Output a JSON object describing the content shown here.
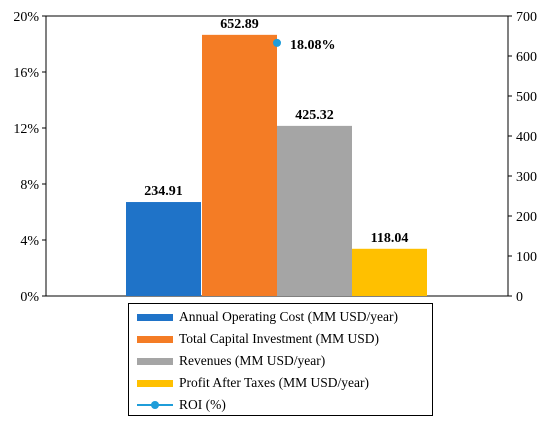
{
  "chart_data": {
    "type": "bar",
    "categories": [
      "Annual Operating Cost (MM USD/year)",
      "Total Capital Investment (MM USD)",
      "Revenues (MM USD/year)",
      "Profit After Taxes (MM USD/year)"
    ],
    "series": [
      {
        "name": "Annual Operating Cost (MM USD/year)",
        "value": 234.91,
        "label": "234.91",
        "color": "#1f73c8"
      },
      {
        "name": "Total Capital Investment (MM USD)",
        "value": 652.89,
        "label": "652.89",
        "color": "#f47c25"
      },
      {
        "name": "Revenues (MM USD/year)",
        "value": 425.32,
        "label": "425.32",
        "color": "#a5a5a5"
      },
      {
        "name": "Profit After Taxes (MM USD/year)",
        "value": 118.04,
        "label": "118.04",
        "color": "#ffc000"
      }
    ],
    "roi": {
      "name": "ROI (%)",
      "value": 18.08,
      "label": "18.08%",
      "color": "#1f9dd9"
    },
    "left_axis": {
      "ylim": [
        0,
        20
      ],
      "ticks": [
        "0%",
        "4%",
        "8%",
        "12%",
        "16%",
        "20%"
      ]
    },
    "right_axis": {
      "ylim": [
        0,
        700
      ],
      "ticks": [
        "0",
        "100",
        "200",
        "300",
        "400",
        "500",
        "600",
        "700"
      ]
    },
    "legend_position": "bottom"
  },
  "legend": {
    "items": [
      "Annual Operating Cost (MM USD/year)",
      "Total Capital Investment (MM USD)",
      "Revenues (MM USD/year)",
      "Profit After Taxes (MM USD/year)",
      "ROI (%)"
    ]
  }
}
